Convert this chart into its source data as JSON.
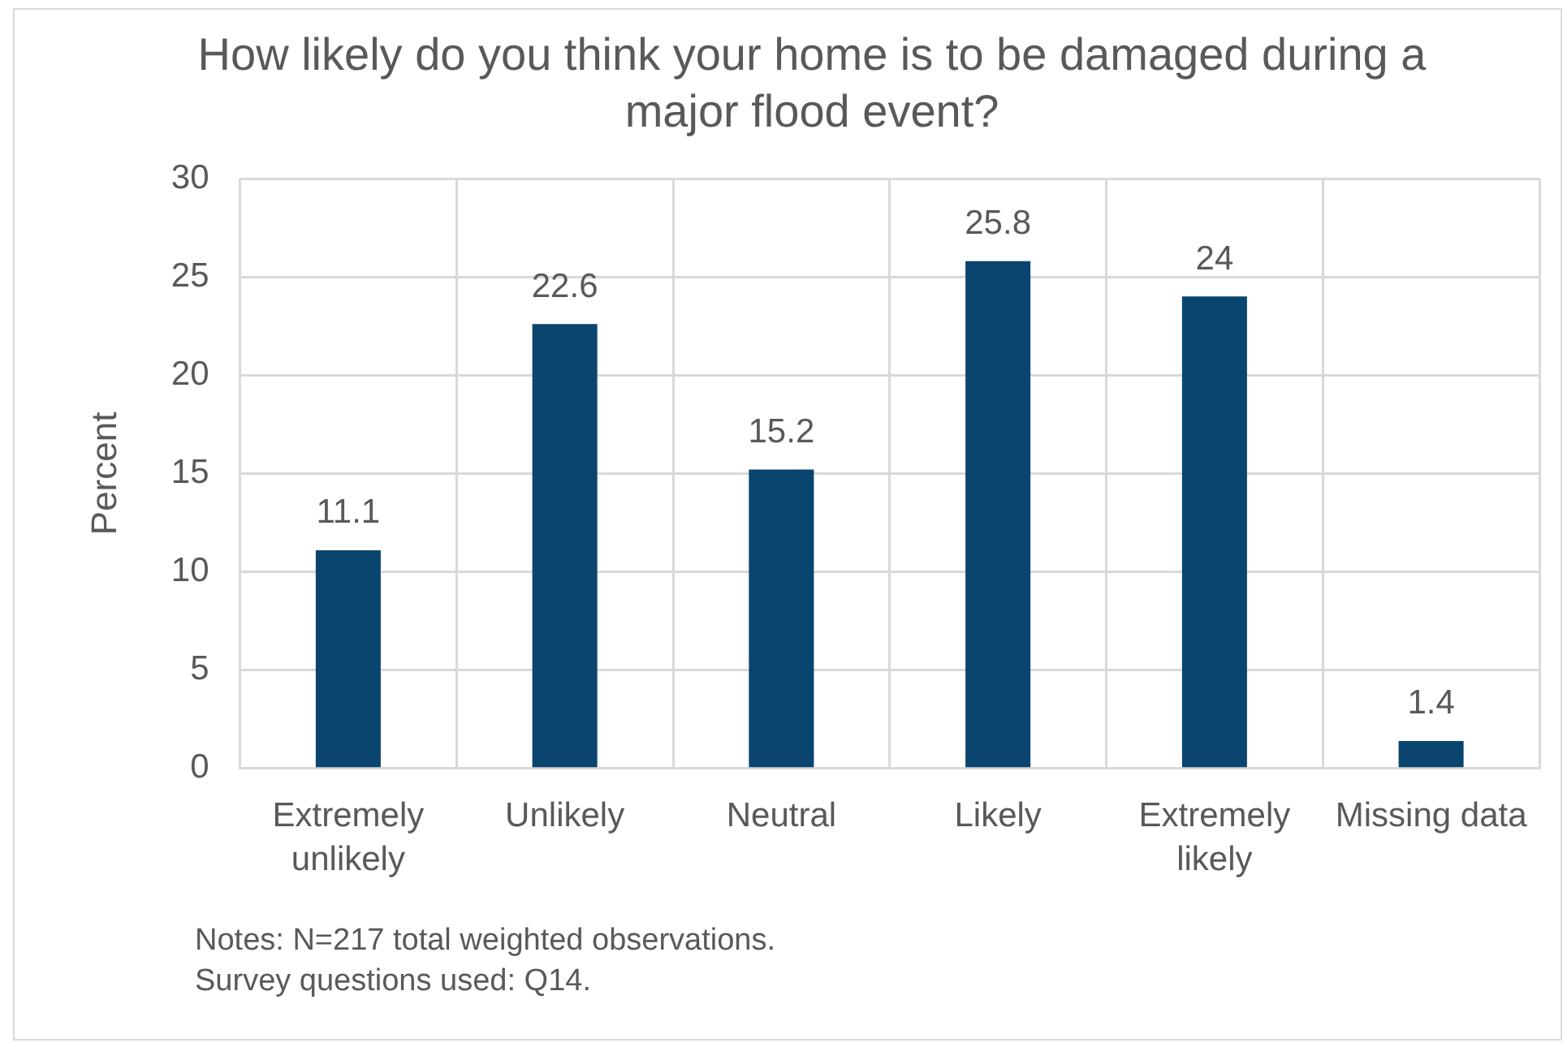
{
  "chart_data": {
    "type": "bar",
    "title": "How likely do you think your home is to be damaged during a major flood event?",
    "ylabel": "Percent",
    "categories": [
      "Extremely unlikely",
      "Unlikely",
      "Neutral",
      "Likely",
      "Extremely likely",
      "Missing data"
    ],
    "values": [
      11.1,
      22.6,
      15.2,
      25.8,
      24,
      1.4
    ],
    "color": "#0a4570",
    "ylim": [
      0,
      30
    ],
    "yticks": [
      0,
      5,
      10,
      15,
      20,
      25,
      30
    ],
    "grid": true,
    "data_labels": true,
    "annotations": [
      "Notes: N=217 total weighted observations.",
      "Survey questions used: Q14."
    ]
  }
}
